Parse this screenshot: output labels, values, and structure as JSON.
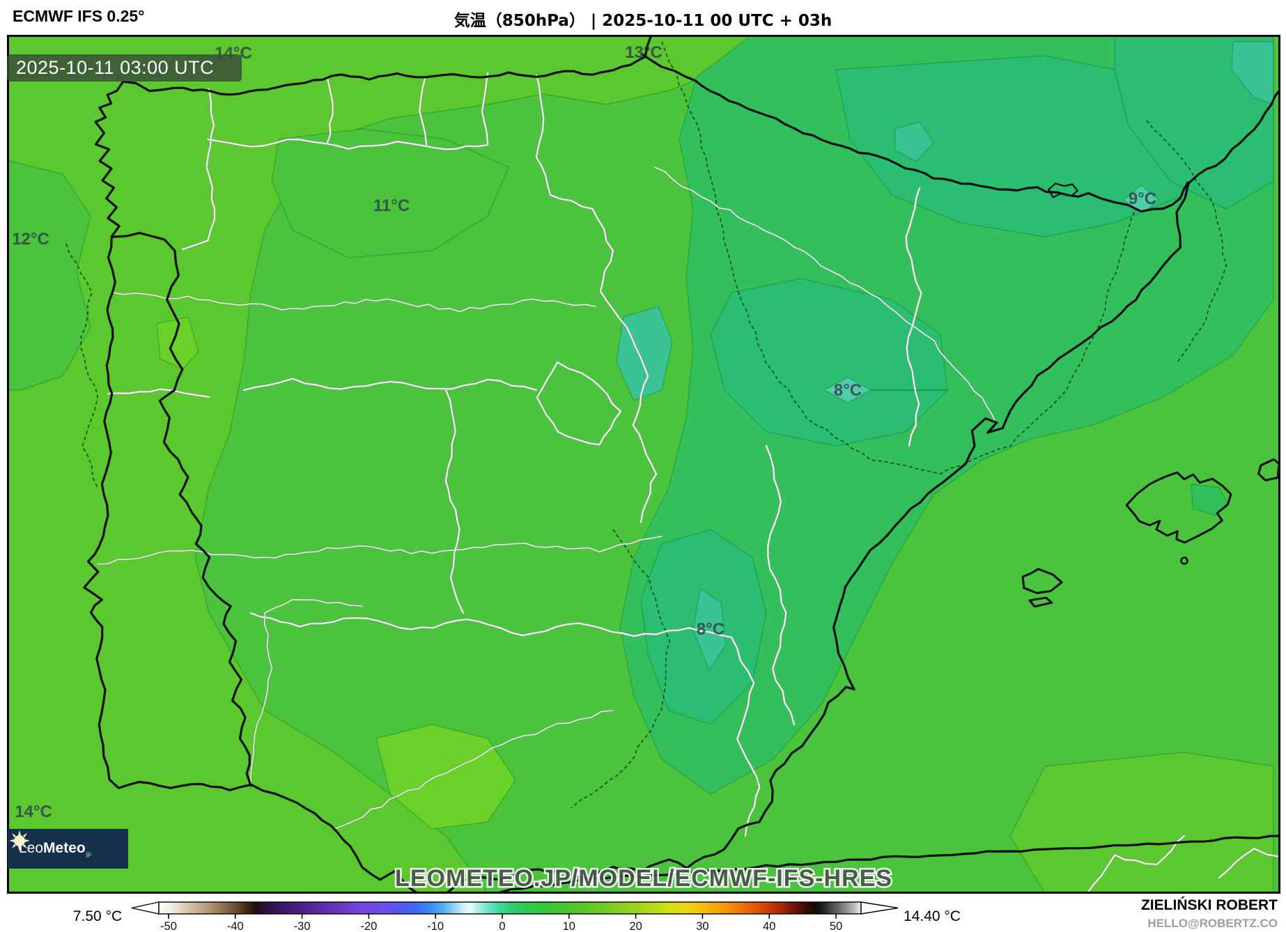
{
  "header": {
    "model": "ECMWF IFS 0.25°",
    "title": "気温（850hPa） | 2025-10-11 00 UTC + 03h"
  },
  "map": {
    "timestamp": "2025-10-11 03:00 UTC",
    "watermark": "LEOMETEO.JP/MODEL/ECMWF-IFS-HRES",
    "logo": {
      "light": "Leo",
      "bold": "Meteo",
      "suffix": "jp"
    },
    "temp_labels": [
      {
        "text": "14°C"
      },
      {
        "text": "13°C"
      },
      {
        "text": "12°C"
      },
      {
        "text": "11°C"
      },
      {
        "text": "9°C"
      },
      {
        "text": "8°C"
      },
      {
        "text": "8°C"
      },
      {
        "text": "14°C"
      }
    ]
  },
  "legend": {
    "min_label": "7.50 °C",
    "max_label": "14.40 °C",
    "ticks": [
      "-50",
      "-40",
      "-30",
      "-20",
      "-10",
      "0",
      "10",
      "20",
      "30",
      "40",
      "50"
    ]
  },
  "credit": {
    "name": "ZIELIŃSKI ROBERT",
    "email": "HELLO@ROBERTZ.CO"
  },
  "colors": {
    "field_bright": "#5bc92d",
    "field_mid": "#49c43c",
    "field_emerald": "#33c05c",
    "field_cool": "#2abf70",
    "field_teal": "#3ac494",
    "field_teal_min": "#4fcda9",
    "logo_bg": "#14304a",
    "timestamp_bg": "#3a4d3a"
  }
}
